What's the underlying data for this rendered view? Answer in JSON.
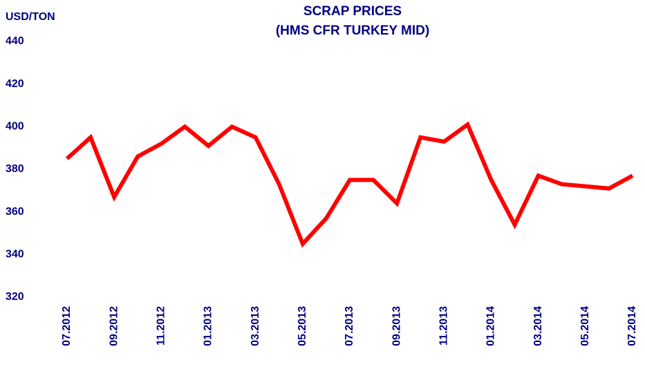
{
  "chart_data": {
    "type": "line",
    "title": "SCRAP PRICES",
    "subtitle": "(HMS CFR TURKEY MID)",
    "y_label": "USD/TON",
    "categories": [
      "07.2012",
      null,
      "09.2012",
      null,
      "11.2012",
      null,
      "01.2013",
      null,
      "03.2013",
      null,
      "05.2013",
      null,
      "07.2013",
      null,
      "09.2013",
      null,
      "11.2013",
      null,
      "01.2014",
      null,
      "03.2014",
      null,
      "05.2014",
      null,
      "07.2014"
    ],
    "series": [
      {
        "name": "HMS CFR Turkey mid",
        "color": "#ff0000",
        "values": [
          385,
          395,
          367,
          386,
          392,
          400,
          391,
          400,
          395,
          373,
          345,
          357,
          375,
          375,
          364,
          395,
          393,
          401,
          375,
          354,
          377,
          373,
          372,
          371,
          377
        ]
      }
    ],
    "ylim": [
      320,
      440
    ],
    "yticks": [
      320,
      340,
      360,
      380,
      400,
      420,
      440
    ],
    "grid": false
  }
}
